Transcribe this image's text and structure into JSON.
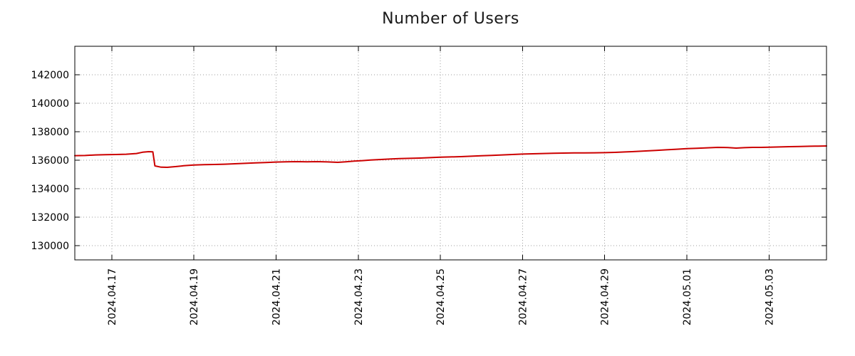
{
  "title": "Number of Users",
  "chart_data": {
    "type": "line",
    "title": "Number of Users",
    "grid": "dotted",
    "legend": "none",
    "x_axis_note": "day index where 2024.04.17 = 1 (one unit = one day)",
    "x_range": [
      0.1,
      18.4
    ],
    "y_range": [
      129000,
      144000
    ],
    "x_ticks": [
      {
        "value": 1,
        "label": "2024.04.17"
      },
      {
        "value": 3,
        "label": "2024.04.19"
      },
      {
        "value": 5,
        "label": "2024.04.21"
      },
      {
        "value": 7,
        "label": "2024.04.23"
      },
      {
        "value": 9,
        "label": "2024.04.25"
      },
      {
        "value": 11,
        "label": "2024.04.27"
      },
      {
        "value": 13,
        "label": "2024.04.29"
      },
      {
        "value": 15,
        "label": "2024.05.01"
      },
      {
        "value": 17,
        "label": "2024.05.03"
      }
    ],
    "y_ticks": [
      {
        "value": 130000,
        "label": "130000"
      },
      {
        "value": 132000,
        "label": "132000"
      },
      {
        "value": 134000,
        "label": "134000"
      },
      {
        "value": 136000,
        "label": "136000"
      },
      {
        "value": 138000,
        "label": "138000"
      },
      {
        "value": 140000,
        "label": "140000"
      },
      {
        "value": 142000,
        "label": "142000"
      }
    ],
    "series": [
      {
        "name": "Number of Users",
        "color": "#cc0000",
        "points": [
          [
            0.1,
            136320
          ],
          [
            0.35,
            136330
          ],
          [
            0.6,
            136370
          ],
          [
            0.85,
            136390
          ],
          [
            1.1,
            136400
          ],
          [
            1.35,
            136420
          ],
          [
            1.6,
            136470
          ],
          [
            1.75,
            136560
          ],
          [
            1.9,
            136600
          ],
          [
            2.0,
            136590
          ],
          [
            2.05,
            135600
          ],
          [
            2.2,
            135510
          ],
          [
            2.35,
            135500
          ],
          [
            2.55,
            135550
          ],
          [
            2.75,
            135610
          ],
          [
            3.0,
            135660
          ],
          [
            3.25,
            135690
          ],
          [
            3.5,
            135700
          ],
          [
            3.75,
            135720
          ],
          [
            4.0,
            135750
          ],
          [
            4.25,
            135780
          ],
          [
            4.5,
            135810
          ],
          [
            4.75,
            135840
          ],
          [
            5.0,
            135870
          ],
          [
            5.25,
            135890
          ],
          [
            5.5,
            135900
          ],
          [
            5.75,
            135890
          ],
          [
            6.0,
            135900
          ],
          [
            6.25,
            135880
          ],
          [
            6.5,
            135850
          ],
          [
            6.7,
            135890
          ],
          [
            6.9,
            135940
          ],
          [
            7.1,
            135970
          ],
          [
            7.3,
            136010
          ],
          [
            7.55,
            136050
          ],
          [
            7.8,
            136090
          ],
          [
            8.0,
            136110
          ],
          [
            8.25,
            136130
          ],
          [
            8.5,
            136150
          ],
          [
            8.75,
            136180
          ],
          [
            9.0,
            136210
          ],
          [
            9.25,
            136230
          ],
          [
            9.5,
            136250
          ],
          [
            9.75,
            136280
          ],
          [
            10.0,
            136310
          ],
          [
            10.25,
            136340
          ],
          [
            10.5,
            136370
          ],
          [
            10.75,
            136400
          ],
          [
            11.0,
            136430
          ],
          [
            11.25,
            136450
          ],
          [
            11.5,
            136470
          ],
          [
            11.75,
            136490
          ],
          [
            12.0,
            136500
          ],
          [
            12.25,
            136510
          ],
          [
            12.5,
            136510
          ],
          [
            12.75,
            136520
          ],
          [
            13.0,
            136530
          ],
          [
            13.25,
            136550
          ],
          [
            13.5,
            136580
          ],
          [
            13.75,
            136610
          ],
          [
            14.0,
            136650
          ],
          [
            14.25,
            136690
          ],
          [
            14.5,
            136730
          ],
          [
            14.75,
            136770
          ],
          [
            15.0,
            136810
          ],
          [
            15.25,
            136840
          ],
          [
            15.5,
            136870
          ],
          [
            15.75,
            136900
          ],
          [
            16.0,
            136890
          ],
          [
            16.2,
            136850
          ],
          [
            16.4,
            136880
          ],
          [
            16.6,
            136900
          ],
          [
            16.8,
            136900
          ],
          [
            17.0,
            136910
          ],
          [
            17.25,
            136930
          ],
          [
            17.5,
            136950
          ],
          [
            17.75,
            136960
          ],
          [
            18.0,
            136980
          ],
          [
            18.2,
            136990
          ],
          [
            18.4,
            137000
          ]
        ]
      }
    ]
  }
}
